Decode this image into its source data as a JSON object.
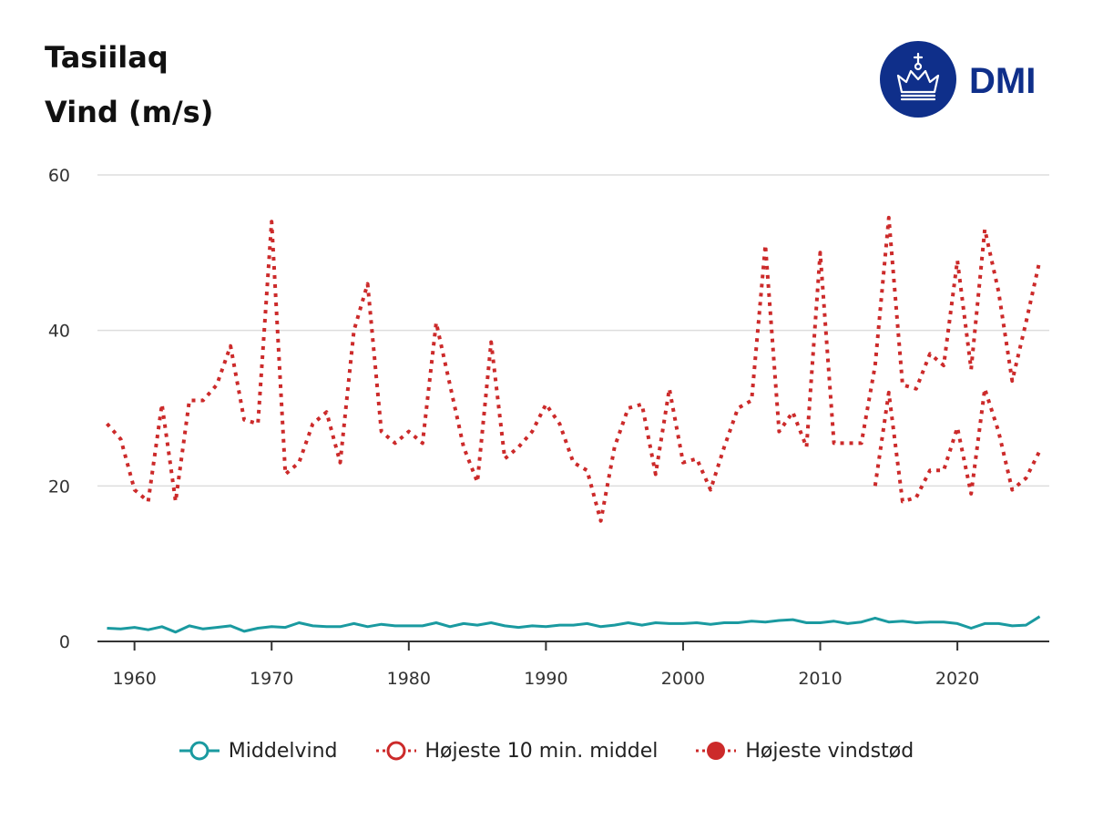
{
  "title": "Tasiilaq",
  "subtitle": "Vind (m/s)",
  "logo_text": "DMI",
  "colors": {
    "mean": "#1a9aa0",
    "max10": "#cc2a2a",
    "gust": "#cc2a2a",
    "grid": "#dddddd",
    "logo": "#0f2f8a"
  },
  "chart_data": {
    "type": "line",
    "title": "Tasiilaq Vind (m/s)",
    "xlabel": "",
    "ylabel": "",
    "xlim": [
      1957.3,
      2026.7
    ],
    "ylim": [
      0,
      60
    ],
    "yticks": [
      0,
      20,
      40,
      60
    ],
    "xticks": [
      1960,
      1970,
      1980,
      1990,
      2000,
      2010,
      2020
    ],
    "x": [
      1958,
      1959,
      1960,
      1961,
      1962,
      1963,
      1964,
      1965,
      1966,
      1967,
      1968,
      1969,
      1970,
      1971,
      1972,
      1973,
      1974,
      1975,
      1976,
      1977,
      1978,
      1979,
      1980,
      1981,
      1982,
      1983,
      1984,
      1985,
      1986,
      1987,
      1988,
      1989,
      1990,
      1991,
      1992,
      1993,
      1994,
      1995,
      1996,
      1997,
      1998,
      1999,
      2000,
      2001,
      2002,
      2003,
      2004,
      2005,
      2006,
      2007,
      2008,
      2009,
      2010,
      2011,
      2012,
      2013,
      2014,
      2015,
      2016,
      2017,
      2018,
      2019,
      2020,
      2021,
      2022,
      2023,
      2024,
      2025,
      2026
    ],
    "series": [
      {
        "name": "Middelvind",
        "style": "solid",
        "values": [
          1.7,
          1.6,
          1.8,
          1.5,
          1.9,
          1.2,
          2.0,
          1.6,
          1.8,
          2.0,
          1.3,
          1.7,
          1.9,
          1.8,
          2.4,
          2.0,
          1.9,
          1.9,
          2.3,
          1.9,
          2.2,
          2.0,
          2.0,
          2.0,
          2.4,
          1.9,
          2.3,
          2.1,
          2.4,
          2.0,
          1.8,
          2.0,
          1.9,
          2.1,
          2.1,
          2.3,
          1.9,
          2.1,
          2.4,
          2.1,
          2.4,
          2.3,
          2.3,
          2.4,
          2.2,
          2.4,
          2.4,
          2.6,
          2.5,
          2.7,
          2.8,
          2.4,
          2.4,
          2.6,
          2.3,
          2.5,
          3.0,
          2.5,
          2.6,
          2.4,
          2.5,
          2.5,
          2.3,
          1.7,
          2.3,
          2.3,
          2.0,
          2.1,
          3.2
        ]
      },
      {
        "name": "Højeste 10 min. middel",
        "style": "dotted",
        "values": [
          null,
          null,
          null,
          null,
          null,
          null,
          null,
          null,
          null,
          null,
          null,
          null,
          null,
          null,
          null,
          null,
          null,
          null,
          null,
          null,
          null,
          null,
          null,
          null,
          null,
          null,
          null,
          null,
          null,
          null,
          null,
          null,
          null,
          null,
          null,
          null,
          null,
          null,
          null,
          null,
          null,
          null,
          null,
          null,
          null,
          null,
          null,
          null,
          null,
          null,
          null,
          null,
          null,
          null,
          null,
          null,
          20.0,
          32.0,
          18.0,
          18.5,
          22.0,
          22.0,
          27.5,
          19.0,
          32.5,
          27.0,
          19.5,
          21.0,
          24.5
        ]
      },
      {
        "name": "Højeste vindstød",
        "style": "dotted",
        "values": [
          28.0,
          26.0,
          19.5,
          18.0,
          30.5,
          18.0,
          31.0,
          31.0,
          33.0,
          38.0,
          28.5,
          28.0,
          54.0,
          21.5,
          23.0,
          28.0,
          29.5,
          23.0,
          40.0,
          46.0,
          27.0,
          25.5,
          27.0,
          25.5,
          41.0,
          33.0,
          25.0,
          20.5,
          38.5,
          23.5,
          25.0,
          27.0,
          30.5,
          28.0,
          23.0,
          22.0,
          15.5,
          25.0,
          30.0,
          30.5,
          21.5,
          32.5,
          23.0,
          23.5,
          19.5,
          25.0,
          30.0,
          31.0,
          51.0,
          27.0,
          29.5,
          25.0,
          50.0,
          25.5,
          25.5,
          25.5,
          35.5,
          54.5,
          33.0,
          32.5,
          37.0,
          35.5,
          49.0,
          35.0,
          53.0,
          45.0,
          33.5,
          41.0,
          49.0
        ]
      }
    ],
    "legend": [
      {
        "label": "Middelvind",
        "marker": "open-circle-solid"
      },
      {
        "label": "Højeste 10 min. middel",
        "marker": "open-circle-dotted"
      },
      {
        "label": "Højeste vindstød",
        "marker": "filled-circle-dotted"
      }
    ]
  }
}
